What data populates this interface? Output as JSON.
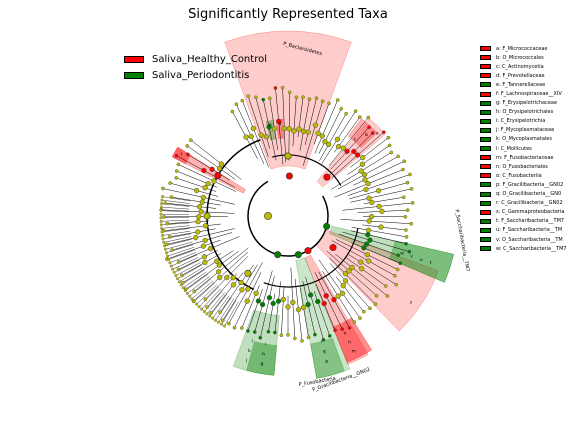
{
  "title": "Significantly Represented Taxa",
  "colors": {
    "red": "#ff0000",
    "green": "#008000",
    "node_yellow": "#bbbb00",
    "red_shade": "#ff9999",
    "green_shade": "#80c080"
  },
  "groups": [
    {
      "name": "Saliva_Healthy_Control",
      "color": "#ff0000"
    },
    {
      "name": "Saliva_Periodontitis",
      "color": "#008000"
    }
  ],
  "taxa": [
    {
      "label": "a: F_Micrococcaceae",
      "color": "#ff0000"
    },
    {
      "label": "b: O_Micrococcales",
      "color": "#ff0000"
    },
    {
      "label": "c: C_Actinomycetia",
      "color": "#ff0000"
    },
    {
      "label": "d: F_Prevotellaceae",
      "color": "#ff0000"
    },
    {
      "label": "e: F_Tannerellaceae",
      "color": "#008000"
    },
    {
      "label": "f: F_Lachnospiraceae__XIV",
      "color": "#ff0000"
    },
    {
      "label": "g: F_Erysipelotrichaceae",
      "color": "#008000"
    },
    {
      "label": "h: O_Erysipelotrichales",
      "color": "#008000"
    },
    {
      "label": "i: C_Erysipelotrichia",
      "color": "#008000"
    },
    {
      "label": "j: F_Mycoplasmataceae",
      "color": "#008000"
    },
    {
      "label": "k: O_Mycoplasmatales",
      "color": "#008000"
    },
    {
      "label": "l: C_Mollicutes",
      "color": "#008000"
    },
    {
      "label": "m: F_Fusobacteriaceae",
      "color": "#ff0000"
    },
    {
      "label": "n: O_Fusobacteriales",
      "color": "#ff0000"
    },
    {
      "label": "o: C_Fusobacteriia",
      "color": "#ff0000"
    },
    {
      "label": "p: F_Gracilibacteria__GN02",
      "color": "#008000"
    },
    {
      "label": "q: O_Gracilibacteria__GN0",
      "color": "#008000"
    },
    {
      "label": "r: C_Gracilibacteria__GN02",
      "color": "#008000"
    },
    {
      "label": "s: C_Gammaproteobacteria",
      "color": "#ff0000"
    },
    {
      "label": "t: F_Saccharibacteria__TM7",
      "color": "#008000"
    },
    {
      "label": "u: F_Saccharibacteria__TM",
      "color": "#008000"
    },
    {
      "label": "v: O_Saccharibacteria__TM",
      "color": "#008000"
    },
    {
      "label": "w: C_Saccharibacteria__TM7",
      "color": "#008000"
    }
  ],
  "clade_labels": {
    "bacteroidetes": "P_Bacteroidetes",
    "saccharibacteria": "P_Saccharibacteria__TM7",
    "gracilibacteria": "P_Gracilibacteria__GN02",
    "fusobacteria": "P_Fusobacteria"
  },
  "sector_letters": {
    "a": "a",
    "b": "b",
    "c": "c",
    "d": "d",
    "e": "e",
    "f": "f",
    "g": "g",
    "h": "h",
    "i": "i",
    "j": "j",
    "k": "k",
    "l": "l",
    "m": "m",
    "n": "n",
    "o": "o",
    "p": "p",
    "q": "q",
    "r": "r",
    "s": "s",
    "t": "t",
    "u": "u",
    "v": "v",
    "w": "w"
  }
}
